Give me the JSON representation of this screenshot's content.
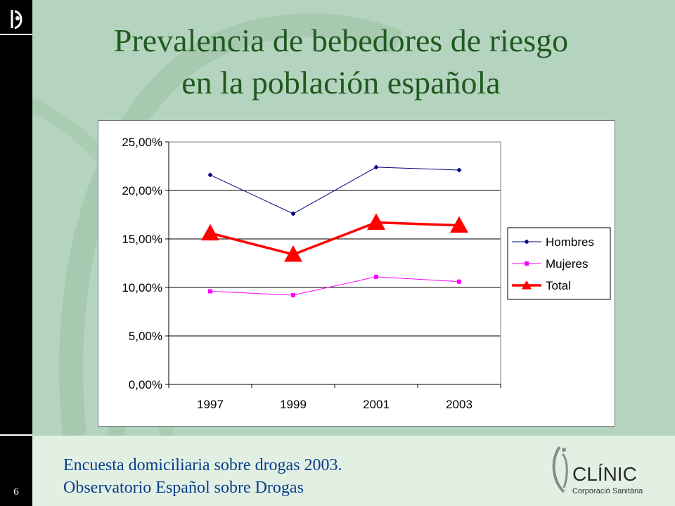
{
  "slide": {
    "page_number": "6",
    "title_line1": "Prevalencia de bebedores de riesgo",
    "title_line2": "en la población española",
    "footer_line1": "Encuesta domiciliaria sobre drogas 2003.",
    "footer_line2": "Observatorio Español sobre Drogas",
    "logo_text": "CLÍNIC",
    "logo_subtext": "Corporació Sanitària",
    "colors": {
      "title": "#1f5a1f",
      "footer": "#0a3d8a",
      "background": "#b5d4bf"
    }
  },
  "chart_data": {
    "type": "line",
    "categories": [
      "1997",
      "1999",
      "2001",
      "2003"
    ],
    "ylim": [
      0,
      25
    ],
    "yticks": [
      "0,00%",
      "5,00%",
      "10,00%",
      "15,00%",
      "20,00%",
      "25,00%"
    ],
    "grid": true,
    "legend_position": "right",
    "series": [
      {
        "name": "Hombres",
        "values": [
          21.6,
          17.6,
          22.4,
          22.1
        ],
        "color": "#000080",
        "marker": "diamond"
      },
      {
        "name": "Mujeres",
        "values": [
          9.6,
          9.2,
          11.1,
          10.6
        ],
        "color": "#ff00ff",
        "marker": "square"
      },
      {
        "name": "Total",
        "values": [
          15.6,
          13.4,
          16.7,
          16.4
        ],
        "color": "#ff0000",
        "marker": "triangle"
      }
    ]
  }
}
